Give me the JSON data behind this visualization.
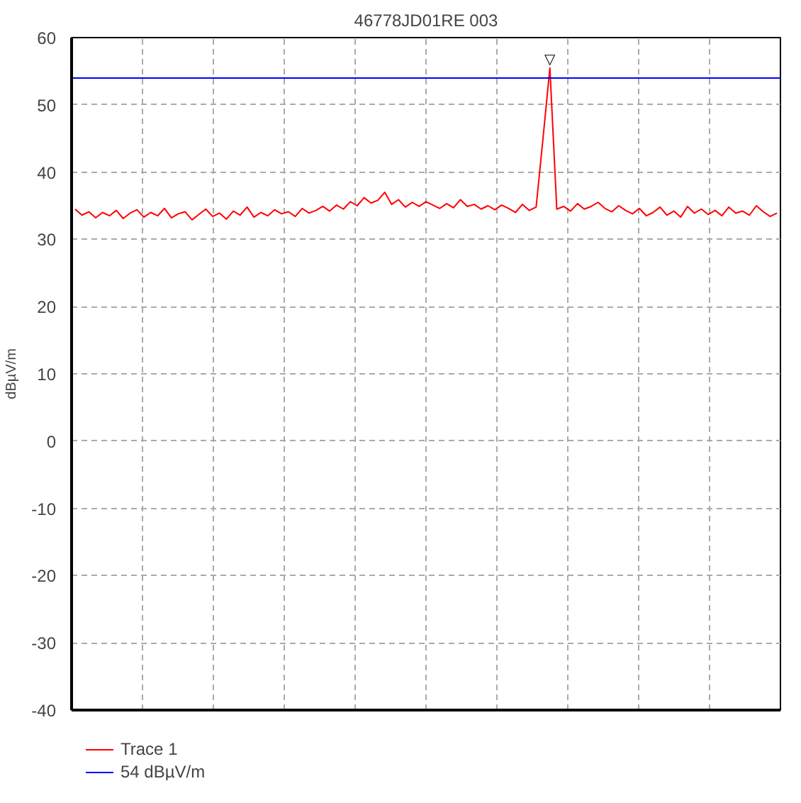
{
  "chart_data": {
    "type": "line",
    "title": "46778JD01RE 003",
    "ylabel": "dBµV/m",
    "categories": [
      null,
      null,
      null,
      null,
      null,
      null,
      null,
      null,
      null,
      null,
      null,
      null,
      null,
      null,
      null,
      null,
      null,
      null,
      null,
      null,
      null,
      null,
      null,
      null,
      null,
      null,
      null,
      null,
      null,
      null,
      null,
      null,
      null,
      null,
      null,
      null,
      null,
      null,
      null,
      null,
      null,
      null,
      null,
      null,
      null,
      null,
      null,
      null,
      null,
      null,
      null,
      null,
      null,
      null,
      null,
      null,
      null,
      null,
      null,
      null,
      null,
      null,
      null,
      null,
      null,
      null,
      null,
      null,
      null,
      null,
      null,
      null,
      null,
      null,
      null,
      null,
      null,
      null,
      null,
      null,
      null,
      null,
      null,
      null,
      null,
      null,
      null,
      null,
      null,
      null,
      null,
      null,
      null,
      null,
      null,
      null,
      null,
      null,
      null,
      null,
      null,
      null,
      null
    ],
    "ylim": [
      -40,
      60
    ],
    "yticks": [
      -40,
      -30,
      -20,
      -10,
      0,
      10,
      20,
      30,
      40,
      50,
      60
    ],
    "grid": true,
    "legend": "bottom",
    "marker": "none",
    "line_style": "solid",
    "series": [
      {
        "name": "Trace 1",
        "color": "#ff0000",
        "values": [
          34.5,
          33.6,
          34.1,
          33.2,
          34.0,
          33.5,
          34.3,
          33.1,
          33.9,
          34.4,
          33.3,
          34.0,
          33.5,
          34.6,
          33.2,
          33.8,
          34.1,
          32.9,
          33.7,
          34.5,
          33.4,
          33.9,
          33.0,
          34.2,
          33.6,
          34.8,
          33.3,
          34.0,
          33.5,
          34.4,
          33.8,
          34.1,
          33.4,
          34.6,
          33.9,
          34.3,
          34.9,
          34.2,
          35.1,
          34.5,
          35.6,
          35.0,
          36.2,
          35.4,
          35.8,
          37.0,
          35.2,
          35.9,
          34.8,
          35.5,
          34.9,
          35.6,
          35.1,
          34.6,
          35.3,
          34.7,
          35.9,
          34.9,
          35.2,
          34.5,
          35.0,
          34.4,
          35.1,
          34.6,
          34.0,
          35.2,
          34.3,
          34.8,
          45.0,
          55.5,
          34.5,
          34.9,
          34.2,
          35.3,
          34.5,
          34.9,
          35.5,
          34.6,
          34.1,
          35.0,
          34.3,
          33.8,
          34.6,
          33.5,
          34.0,
          34.8,
          33.6,
          34.2,
          33.3,
          34.9,
          33.9,
          34.5,
          33.7,
          34.3,
          33.5,
          34.8,
          33.9,
          34.2,
          33.6,
          35.0,
          34.1,
          33.4,
          33.9
        ]
      }
    ],
    "ref_lines": [
      {
        "axis": "y",
        "value": 54,
        "label": "54 dBµV/m",
        "color": "#0000ff",
        "line_style": "solid"
      }
    ],
    "annotations": [
      "▽"
    ]
  }
}
